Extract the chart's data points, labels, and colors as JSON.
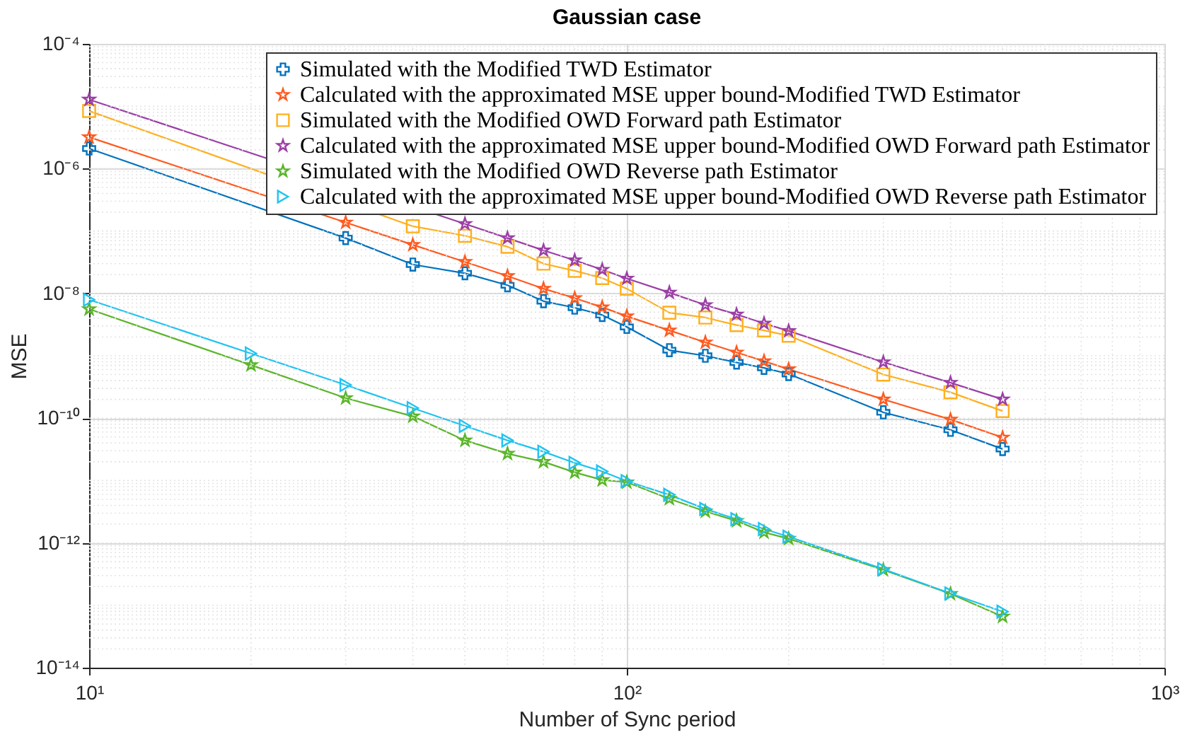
{
  "chart_data": {
    "type": "line",
    "title": "Gaussian case",
    "xlabel": "Number of Sync period",
    "ylabel": "MSE",
    "x": [
      10,
      20,
      30,
      40,
      50,
      60,
      70,
      80,
      90,
      100,
      120,
      140,
      160,
      180,
      200,
      300,
      400,
      500
    ],
    "log": "xy",
    "grid": true,
    "legend": "top right",
    "line_style": "solid",
    "xlim": [
      10,
      1000
    ],
    "xticks": [
      {
        "value": 10,
        "label": "10¹"
      },
      {
        "value": 100,
        "label": "10²"
      },
      {
        "value": 1000,
        "label": "10³"
      }
    ],
    "ylim": [
      1e-14,
      0.0001
    ],
    "yticks": [
      {
        "value": 1e-14,
        "label": "10⁻¹⁴"
      },
      {
        "value": 1e-12,
        "label": "10⁻¹²"
      },
      {
        "value": 1e-10,
        "label": "10⁻¹⁰"
      },
      {
        "value": 1e-08,
        "label": "10⁻⁸"
      },
      {
        "value": 1e-06,
        "label": "10⁻⁶"
      },
      {
        "value": 0.0001,
        "label": "10⁻⁴"
      }
    ],
    "series": [
      {
        "name": "Simulated with the Modified TWD Estimator",
        "color": "#0072bd",
        "marker": "cross",
        "values": [
          2.1e-06,
          null,
          7.7e-08,
          2.9e-08,
          2.1e-08,
          1.35e-08,
          7.5e-09,
          5.9e-09,
          4.5e-09,
          2.9e-09,
          1.23e-09,
          1e-09,
          7.8e-10,
          6.4e-10,
          5.1e-10,
          1.24e-10,
          6.5e-11,
          3.2e-11
        ]
      },
      {
        "name": "Calculated with the approximated MSE upper bound-Modified TWD Estimator",
        "color": "#ff5a1f",
        "marker": "star",
        "values": [
          3.2e-06,
          null,
          1.37e-07,
          6e-08,
          3.2e-08,
          1.9e-08,
          1.19e-08,
          8.4e-09,
          6e-09,
          4.3e-09,
          2.55e-09,
          1.64e-09,
          1.13e-09,
          8.2e-10,
          6.1e-10,
          2e-10,
          9.5e-11,
          4.9e-11
        ]
      },
      {
        "name": "Simulated with the Modified OWD Forward path Estimator",
        "color": "#ffb01f",
        "marker": "square",
        "values": [
          8.4e-06,
          null,
          null,
          1.19e-07,
          8.4e-08,
          5.6e-08,
          3e-08,
          2.3e-08,
          1.76e-08,
          1.19e-08,
          4.9e-09,
          4.1e-09,
          3.1e-09,
          2.55e-09,
          2.1e-09,
          5e-10,
          2.6e-10,
          1.3e-10
        ]
      },
      {
        "name": "Calculated with the approximated MSE upper bound-Modified OWD Forward path Estimator",
        "color": "#9b3fa6",
        "marker": "star",
        "values": [
          1.28e-05,
          null,
          null,
          null,
          1.3e-07,
          7.7e-08,
          4.9e-08,
          3.4e-08,
          2.4e-08,
          1.73e-08,
          1.03e-08,
          6.5e-09,
          4.6e-09,
          3.3e-09,
          2.5e-09,
          7.9e-10,
          3.7e-10,
          2e-10
        ]
      },
      {
        "name": "Simulated with the Modified OWD Reverse path Estimator",
        "color": "#5ab52a",
        "marker": "star",
        "values": [
          5.6e-09,
          7.1e-10,
          2.1e-10,
          1.07e-10,
          4.4e-11,
          2.7e-11,
          2e-11,
          1.35e-11,
          1.02e-11,
          9.4e-12,
          5.1e-12,
          3.2e-12,
          2.26e-12,
          1.48e-12,
          1.17e-12,
          3.7e-13,
          1.53e-13,
          6.6e-14
        ]
      },
      {
        "name": "Calculated with the approximated MSE upper bound-Modified OWD Reverse path Estimator",
        "color": "#1fc3f0",
        "marker": "triangle",
        "values": [
          7.9e-09,
          1.09e-09,
          3.4e-10,
          1.45e-10,
          7.5e-11,
          4.4e-11,
          2.9e-11,
          1.92e-11,
          1.4e-11,
          9.8e-12,
          5.9e-12,
          3.5e-12,
          2.4e-12,
          1.67e-12,
          1.26e-12,
          3.8e-13,
          1.55e-13,
          7.9e-14
        ]
      }
    ]
  }
}
